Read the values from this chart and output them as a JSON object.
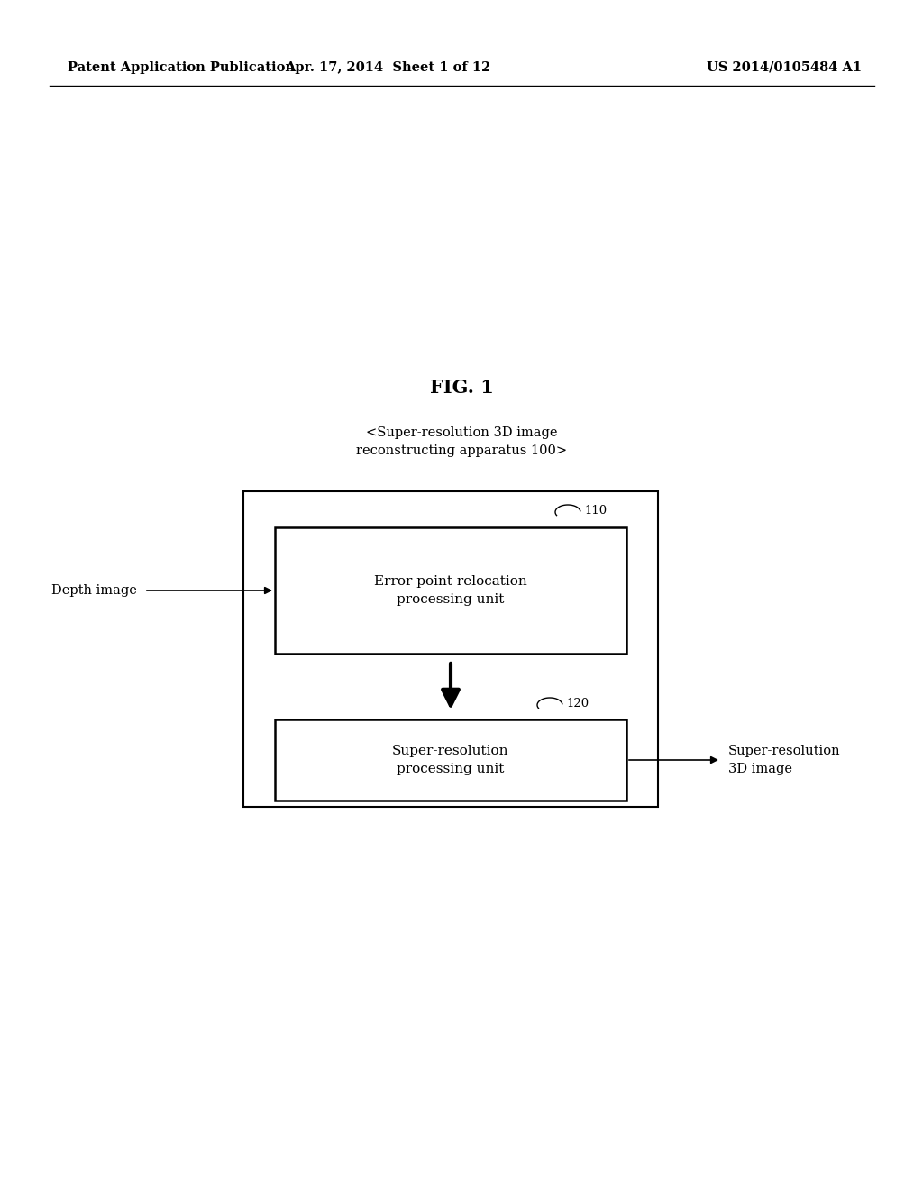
{
  "bg_color": "#ffffff",
  "header_left": "Patent Application Publication",
  "header_mid": "Apr. 17, 2014  Sheet 1 of 12",
  "header_right": "US 2014/0105484 A1",
  "fig_title": "FIG. 1",
  "apparatus_label": "<Super-resolution 3D image\nreconstructing apparatus 100>",
  "box1_label": "Error point relocation\nprocessing unit",
  "box1_ref": "110",
  "box2_label": "Super-resolution\nprocessing unit",
  "box2_ref": "120",
  "input_label": "Depth image",
  "output_label": "Super-resolution\n3D image"
}
